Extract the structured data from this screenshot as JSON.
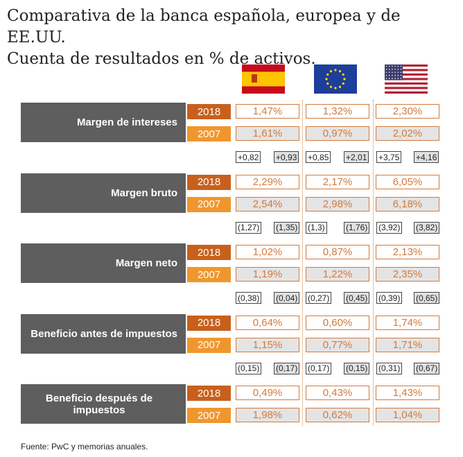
{
  "title_line1": "Comparativa de la banca española, europea y de EE.UU.",
  "title_line2": "Cuenta de resultados en % de activos.",
  "columns": [
    "España",
    "Unión Europea",
    "EE.UU."
  ],
  "years": [
    "2018",
    "2007"
  ],
  "rows": [
    {
      "label": "Margen de intereses",
      "v2018": [
        "1,47%",
        "1,32%",
        "2,30%"
      ],
      "v2007": [
        "1,61%",
        "0,97%",
        "2,02%"
      ],
      "deltas": [
        [
          "+0,82",
          "+0,93"
        ],
        [
          "+0,85",
          "+2,01"
        ],
        [
          "+3,75",
          "+4,16"
        ]
      ]
    },
    {
      "label": "Margen bruto",
      "v2018": [
        "2,29%",
        "2,17%",
        "6,05%"
      ],
      "v2007": [
        "2,54%",
        "2,98%",
        "6,18%"
      ],
      "deltas": [
        [
          "(1,27)",
          "(1,35)"
        ],
        [
          "(1,3)",
          "(1,76)"
        ],
        [
          "(3,92)",
          "(3,82)"
        ]
      ]
    },
    {
      "label": "Margen neto",
      "v2018": [
        "1,02%",
        "0,87%",
        "2,13%"
      ],
      "v2007": [
        "1,19%",
        "1,22%",
        "2,35%"
      ],
      "deltas": [
        [
          "(0,38)",
          "(0,04)"
        ],
        [
          "(0,27)",
          "(0,45)"
        ],
        [
          "(0,39)",
          "(0,65)"
        ]
      ]
    },
    {
      "label": "Beneficio antes de impuestos",
      "v2018": [
        "0,64%",
        "0,60%",
        "1,74%"
      ],
      "v2007": [
        "1,15%",
        "0,77%",
        "1,71%"
      ],
      "deltas": [
        [
          "(0,15)",
          "(0,17)"
        ],
        [
          "(0,17)",
          "(0,15)"
        ],
        [
          "(0,31)",
          "(0,67)"
        ]
      ]
    },
    {
      "label": "Beneficio después de impuestos",
      "v2018": [
        "0,49%",
        "0,43%",
        "1,43%"
      ],
      "v2007": [
        "1,98%",
        "0,62%",
        "1,04%"
      ],
      "deltas": null
    }
  ],
  "source": "Fuente: PwC y memorias anuales.",
  "colors": {
    "dark_orange": "#c8601c",
    "light_orange": "#f0962e",
    "gray": "#5f5e5f",
    "value": "#d07a3e"
  }
}
